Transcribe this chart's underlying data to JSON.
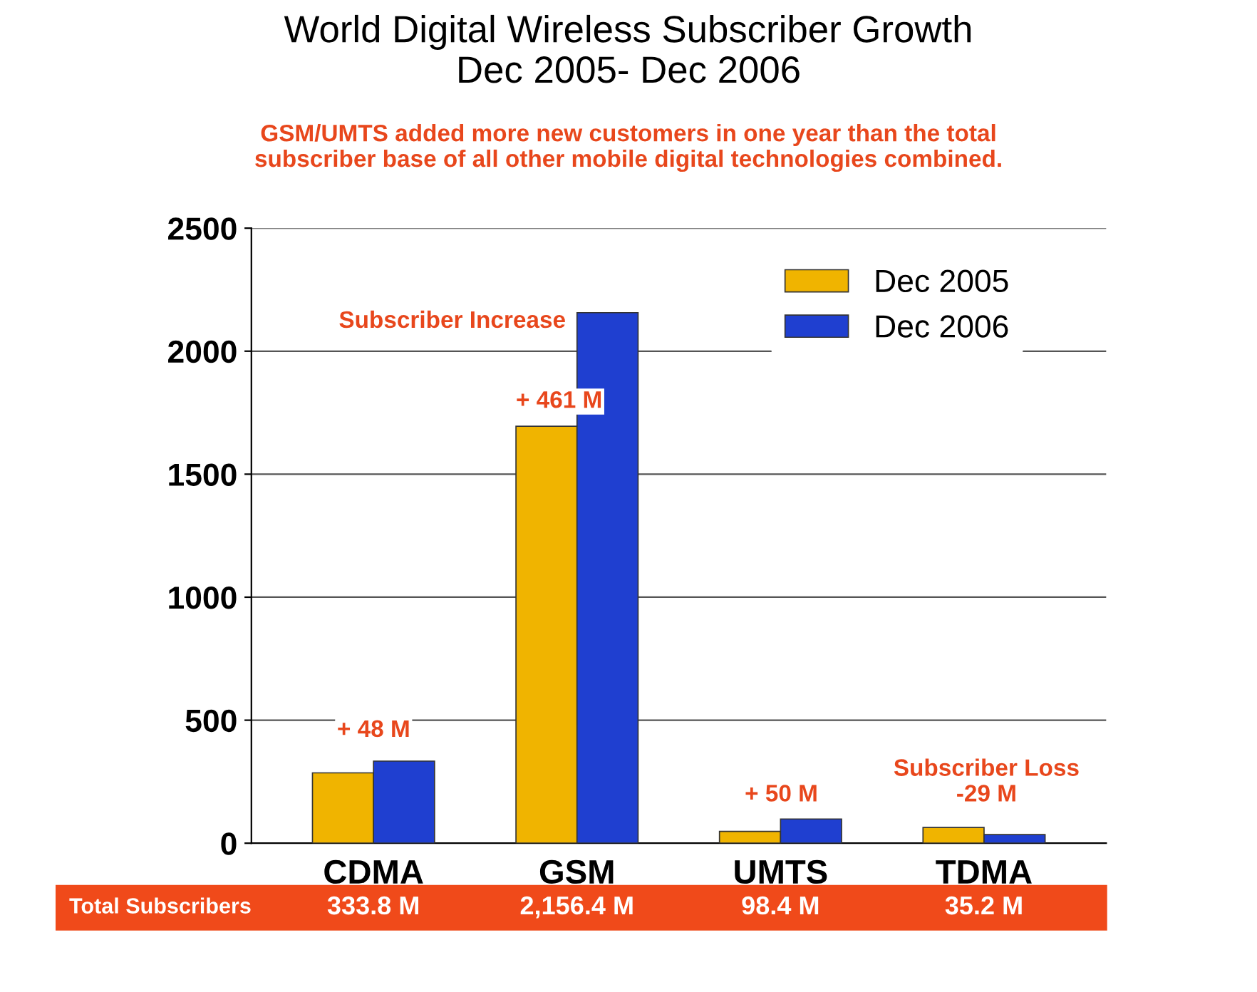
{
  "chart_data": {
    "type": "bar",
    "title": "World Digital Wireless Subscriber Growth\nDec 2005- Dec 2006",
    "subtitle": "GSM/UMTS added more new customers in one year than the total\nsubscriber base of all other mobile digital technologies combined.",
    "categories": [
      "CDMA",
      "GSM",
      "UMTS",
      "TDMA"
    ],
    "series": [
      {
        "name": "Dec 2005",
        "color": "#f0b400",
        "values": [
          286,
          1695,
          48,
          64
        ]
      },
      {
        "name": "Dec 2006",
        "color": "#1f3fd0",
        "values": [
          333.8,
          2156.4,
          98.4,
          35.2
        ],
        "value_labels": [
          "333.8 M",
          "2,156.4 M",
          "98.4 M",
          "35.2 M"
        ]
      }
    ],
    "ylim": [
      0,
      2500
    ],
    "yticks": [
      0,
      500,
      1000,
      1500,
      2000,
      2500
    ],
    "grid": "y",
    "legend": "top right",
    "annotations": [
      "+ 48 M",
      "Subscriber Increase",
      "+ 461 M",
      "+ 50 M",
      "Subscriber Loss\n-29 M",
      "Total Subscribers"
    ]
  }
}
